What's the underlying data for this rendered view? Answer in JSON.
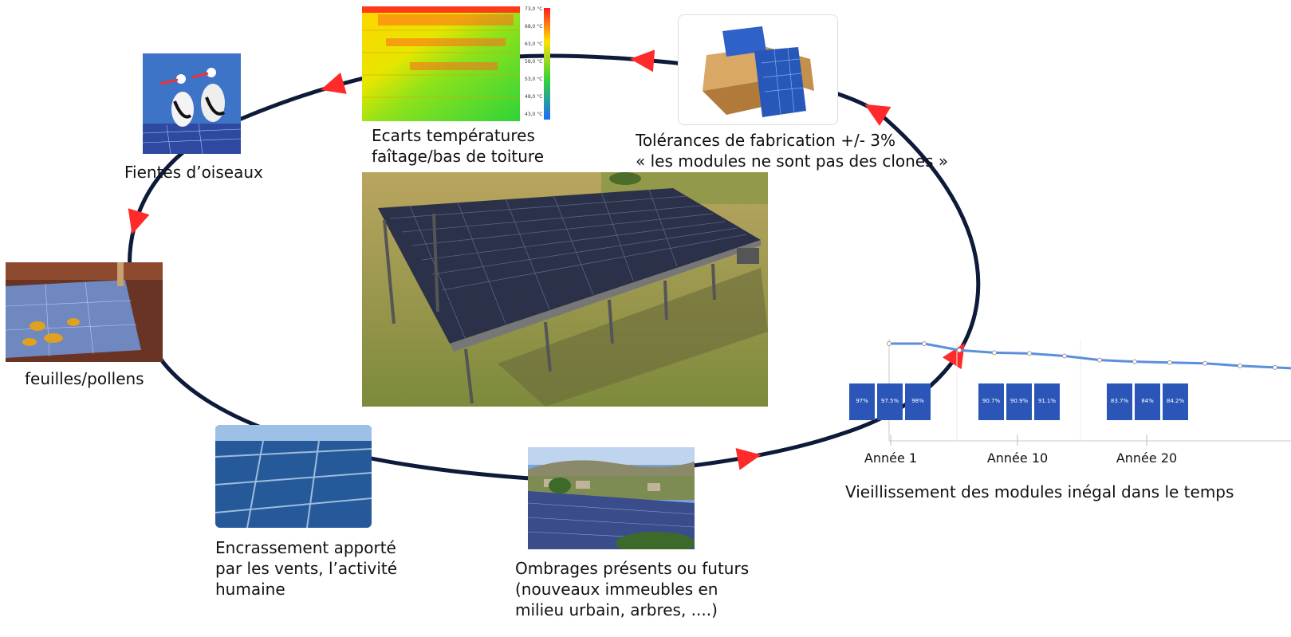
{
  "colors": {
    "cycle_line": "#0e1a3a",
    "arrow_red": "#ff2a2a",
    "panel_blue": "#2b56b8",
    "chart_line": "#5b8fdc"
  },
  "nodes": {
    "temperature": {
      "lines": [
        "Ecarts températures",
        "faîtage/bas de toiture"
      ]
    },
    "manufacturing": {
      "lines": [
        "Tolérances de fabrication +/- 3%",
        "« les modules ne sont pas des clones »"
      ]
    },
    "aging": {
      "lines": [
        "Vieillissement des modules inégal dans le temps"
      ]
    },
    "shading": {
      "lines": [
        "Ombrages présents ou futurs",
        "(nouveaux immeubles en",
        "milieu urbain, arbres, ....)"
      ]
    },
    "soiling": {
      "lines": [
        "Encrassement apporté",
        "par les vents, l’activité",
        "humaine"
      ]
    },
    "leaves": {
      "lines": [
        "feuilles/pollens"
      ]
    },
    "birds": {
      "lines": [
        "Fientes d’oiseaux"
      ]
    }
  },
  "thermal_scale": [
    "73,0 °C",
    "68,0 °C",
    "63,0 °C",
    "58,0 °C",
    "53,0 °C",
    "48,0 °C",
    "43,0 °C"
  ],
  "chart_data": {
    "type": "line",
    "title": "",
    "categories": [
      "Année 1",
      "Année 10",
      "Année 20"
    ],
    "x": [
      1,
      2,
      3,
      4,
      5,
      6,
      7,
      8,
      9,
      10,
      11,
      12,
      13,
      14
    ],
    "series": [
      {
        "values": [
          100,
          100,
          99.2,
          98.9,
          98.8,
          98.5,
          98.0,
          97.8,
          97.7,
          97.6,
          97.3,
          97.1,
          96.9,
          96.7
        ]
      }
    ],
    "module_groups": [
      {
        "category": "Année 1",
        "labels": [
          "97%",
          "97.5%",
          "98%"
        ]
      },
      {
        "category": "Année 10",
        "labels": [
          "90.7%",
          "90.9%",
          "91.1%"
        ]
      },
      {
        "category": "Année 20",
        "labels": [
          "83.7%",
          "84%",
          "84.2%"
        ]
      }
    ],
    "ylim": [
      90,
      101
    ],
    "grid": false
  }
}
